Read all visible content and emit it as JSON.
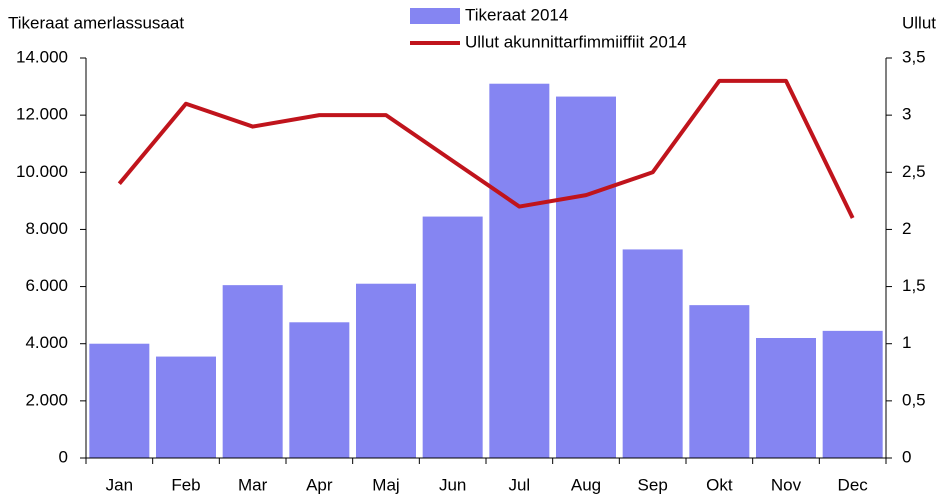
{
  "chart_data": {
    "type": "bar",
    "y_label": "Tikeraat amerlassusaat",
    "y2_label": "Ullut",
    "categories": [
      "Jan",
      "Feb",
      "Mar",
      "Apr",
      "Maj",
      "Jun",
      "Jul",
      "Aug",
      "Sep",
      "Okt",
      "Nov",
      "Dec"
    ],
    "series": [
      {
        "name": "Tikeraat 2014",
        "color": "#8585f2",
        "type": "bar",
        "values": [
          4000,
          3550,
          6050,
          4750,
          6100,
          8450,
          13100,
          12650,
          7300,
          5350,
          4200,
          4450
        ]
      },
      {
        "name": "Ullut akunnittarfimmiiffiit 2014",
        "color": "#c0141c",
        "type": "line",
        "axis": "y2",
        "values": [
          2.4,
          3.1,
          2.9,
          3.0,
          3.0,
          2.6,
          2.2,
          2.3,
          2.5,
          3.3,
          3.3,
          2.1
        ]
      }
    ],
    "ylim": [
      0,
      14000
    ],
    "yticks": [
      0,
      {
        "value": 2000,
        "label": "2.000"
      },
      {
        "value": 4000,
        "label": "4.000"
      },
      {
        "value": 6000,
        "label": "6.000"
      },
      {
        "value": 8000,
        "label": "8.000"
      },
      {
        "value": 10000,
        "label": "10.000"
      },
      {
        "value": 12000,
        "label": "12.000"
      },
      {
        "value": 14000,
        "label": "14.000"
      }
    ],
    "y2lim": [
      0,
      3.5
    ],
    "y2ticks": [
      0,
      {
        "value": 0.5,
        "label": "0,5"
      },
      1,
      {
        "value": 1.5,
        "label": "1,5"
      },
      2,
      {
        "value": 2.5,
        "label": "2,5"
      },
      3,
      {
        "value": 3.5,
        "label": "3,5"
      }
    ],
    "legend": "top"
  }
}
